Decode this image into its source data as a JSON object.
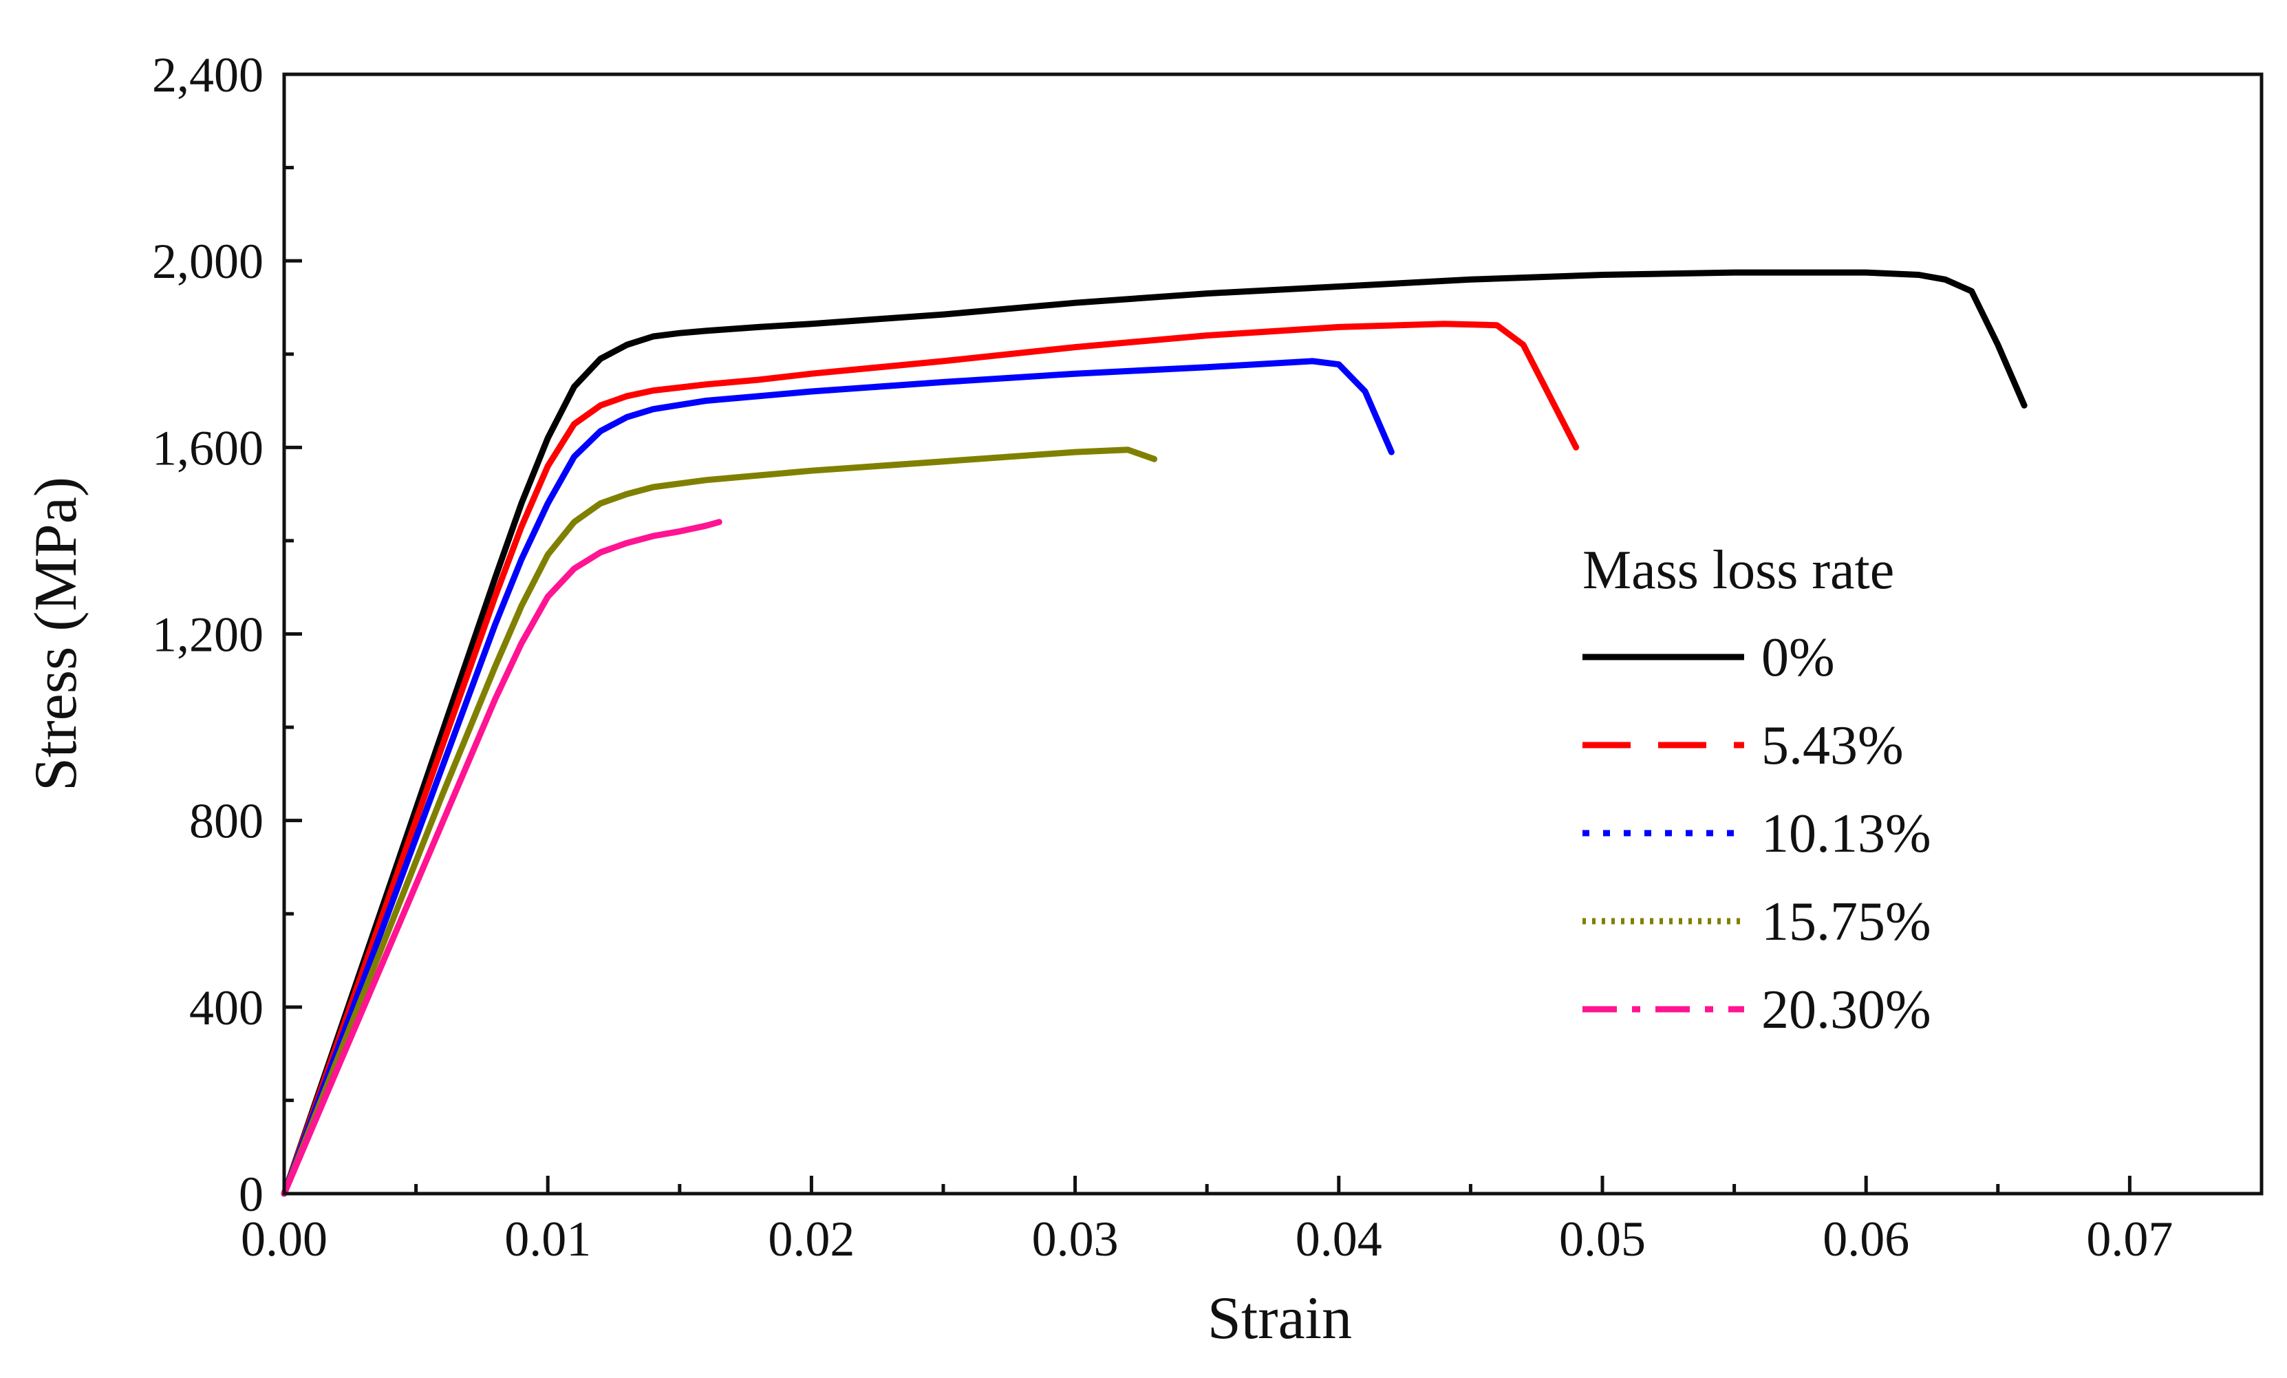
{
  "chart_data": {
    "type": "line",
    "title": "",
    "xlabel": "Strain",
    "ylabel": "Stress (MPa)",
    "xlim": [
      0,
      0.075
    ],
    "ylim": [
      0,
      2400
    ],
    "xticks": [
      0,
      0.01,
      0.02,
      0.03,
      0.04,
      0.05,
      0.06,
      0.07
    ],
    "xtick_labels": [
      "0.00",
      "0.01",
      "0.02",
      "0.03",
      "0.04",
      "0.05",
      "0.06",
      "0.07"
    ],
    "yticks": [
      0,
      400,
      800,
      1200,
      1600,
      2000,
      2400
    ],
    "ytick_labels": [
      "0",
      "400",
      "800",
      "1,200",
      "1,600",
      "2,000",
      "2,400"
    ],
    "grid": false,
    "legend": {
      "title": "Mass loss rate",
      "position": "center-right"
    },
    "series": [
      {
        "name": "0%",
        "color": "#000000",
        "dash": "solid",
        "x": [
          0,
          0.002,
          0.004,
          0.006,
          0.008,
          0.009,
          0.01,
          0.011,
          0.012,
          0.013,
          0.014,
          0.015,
          0.016,
          0.018,
          0.02,
          0.025,
          0.03,
          0.035,
          0.04,
          0.045,
          0.05,
          0.055,
          0.06,
          0.062,
          0.063,
          0.064,
          0.065,
          0.066
        ],
        "y": [
          0,
          330,
          660,
          990,
          1320,
          1480,
          1620,
          1730,
          1790,
          1820,
          1838,
          1845,
          1850,
          1858,
          1865,
          1885,
          1910,
          1930,
          1945,
          1960,
          1970,
          1975,
          1975,
          1970,
          1960,
          1935,
          1820,
          1690
        ]
      },
      {
        "name": "5.43%",
        "color": "#ff0000",
        "dash": "dashed",
        "x": [
          0,
          0.002,
          0.004,
          0.006,
          0.008,
          0.009,
          0.01,
          0.011,
          0.012,
          0.013,
          0.014,
          0.016,
          0.018,
          0.02,
          0.025,
          0.03,
          0.035,
          0.04,
          0.044,
          0.046,
          0.047,
          0.048,
          0.049
        ],
        "y": [
          0,
          320,
          640,
          960,
          1280,
          1430,
          1560,
          1650,
          1690,
          1710,
          1722,
          1735,
          1745,
          1758,
          1785,
          1815,
          1840,
          1858,
          1865,
          1862,
          1820,
          1710,
          1600
        ]
      },
      {
        "name": "10.13%",
        "color": "#0000ff",
        "dash": "dotted",
        "x": [
          0,
          0.002,
          0.004,
          0.006,
          0.008,
          0.009,
          0.01,
          0.011,
          0.012,
          0.013,
          0.014,
          0.016,
          0.018,
          0.02,
          0.025,
          0.03,
          0.035,
          0.039,
          0.04,
          0.041,
          0.042
        ],
        "y": [
          0,
          305,
          610,
          915,
          1220,
          1360,
          1480,
          1580,
          1635,
          1665,
          1682,
          1700,
          1710,
          1720,
          1740,
          1758,
          1772,
          1785,
          1778,
          1720,
          1590
        ]
      },
      {
        "name": "15.75%",
        "color": "#808000",
        "dash": "densely-dotted",
        "x": [
          0,
          0.002,
          0.004,
          0.006,
          0.008,
          0.009,
          0.01,
          0.011,
          0.012,
          0.013,
          0.014,
          0.016,
          0.018,
          0.02,
          0.025,
          0.03,
          0.032,
          0.033
        ],
        "y": [
          0,
          285,
          570,
          855,
          1130,
          1260,
          1370,
          1440,
          1480,
          1500,
          1515,
          1530,
          1540,
          1550,
          1570,
          1590,
          1595,
          1575
        ]
      },
      {
        "name": "20.30%",
        "color": "#ff1493",
        "dash": "dash-dot",
        "x": [
          0,
          0.002,
          0.004,
          0.006,
          0.008,
          0.009,
          0.01,
          0.011,
          0.012,
          0.013,
          0.014,
          0.015,
          0.016,
          0.0165
        ],
        "y": [
          0,
          265,
          530,
          795,
          1060,
          1180,
          1280,
          1340,
          1375,
          1395,
          1410,
          1420,
          1432,
          1440
        ]
      }
    ]
  }
}
